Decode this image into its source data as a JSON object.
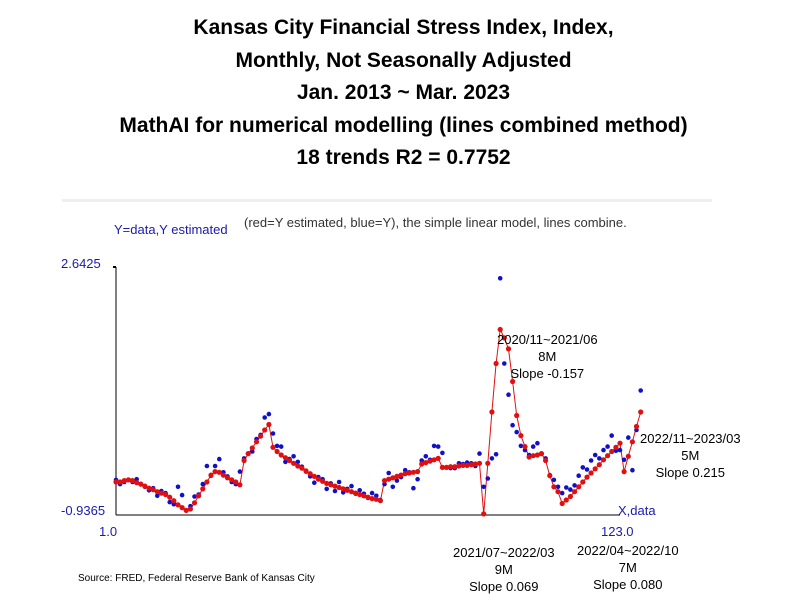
{
  "title_lines": [
    "Kansas City Financial Stress Index, Index,",
    "Monthly, Not Seasonally Adjusted",
    "Jan. 2013 ~ Mar. 2023",
    "MathAI for numerical modelling (lines combined method)",
    "18 trends    R2 = 0.7752"
  ],
  "axis_title_y": "Y=data,Y estimated",
  "axis_title_x": "X,data",
  "caption": "(red=Y estimated, blue=Y), the simple linear model, lines combine.",
  "source": "Source: FRED, Federal Reserve Bank of Kansas City",
  "annotations": [
    {
      "lines": [
        "2020/11~2021/06",
        "8M",
        "Slope -0.157"
      ]
    },
    {
      "lines": [
        "2022/11~2023/03",
        "5M",
        "Slope 0.215"
      ]
    },
    {
      "lines": [
        "2021/07~2022/03",
        "9M",
        "Slope 0.069"
      ]
    },
    {
      "lines": [
        "2022/04~2022/10",
        "7M",
        "Slope 0.080"
      ]
    }
  ],
  "colors": {
    "actual": "#1010c8",
    "estimated": "#e01010",
    "axis": "#000000",
    "labels": "#1a1ab0"
  },
  "chart_data": {
    "type": "line",
    "title": "Kansas City Financial Stress Index, Index, Monthly, Not Seasonally Adjusted",
    "xlabel": "X,data",
    "ylabel": "Y=data,Y estimated",
    "x_ticks": [
      "1.0",
      "123.0"
    ],
    "y_ticks": [
      "2.6425",
      "-0.9365"
    ],
    "xlim": [
      1,
      123
    ],
    "ylim": [
      -0.9365,
      2.6425
    ],
    "grid": false,
    "legend": "none",
    "series": [
      {
        "name": "Y",
        "values": [
          -0.43,
          -0.49,
          -0.46,
          -0.43,
          -0.46,
          -0.42,
          -0.49,
          -0.53,
          -0.58,
          -0.55,
          -0.66,
          -0.59,
          -0.62,
          -0.75,
          -0.78,
          -0.53,
          -0.65,
          -0.87,
          -0.81,
          -0.67,
          -0.64,
          -0.49,
          -0.23,
          -0.37,
          -0.23,
          -0.13,
          -0.32,
          -0.38,
          -0.46,
          -0.49,
          -0.31,
          -0.12,
          -0.05,
          -0.02,
          0.16,
          0.22,
          0.47,
          0.52,
          0.24,
          0.06,
          0.05,
          -0.17,
          -0.13,
          -0.09,
          -0.17,
          -0.24,
          -0.31,
          -0.38,
          -0.47,
          -0.39,
          -0.42,
          -0.56,
          -0.48,
          -0.59,
          -0.46,
          -0.61,
          -0.56,
          -0.52,
          -0.63,
          -0.58,
          -0.63,
          -0.69,
          -0.62,
          -0.66,
          -0.72,
          -0.49,
          -0.33,
          -0.53,
          -0.44,
          -0.39,
          -0.29,
          -0.32,
          -0.55,
          -0.42,
          -0.15,
          -0.09,
          -0.14,
          0.06,
          0.05,
          -0.04,
          -0.25,
          -0.26,
          -0.26,
          -0.19,
          -0.2,
          -0.18,
          -0.19,
          -0.23,
          -0.05,
          -0.53,
          -0.41,
          -0.12,
          -0.06,
          2.48,
          1.25,
          0.8,
          0.36,
          0.26,
          0.06,
          0.0,
          -0.07,
          0.05,
          0.1,
          -0.05,
          -0.12,
          -0.36,
          -0.43,
          -0.53,
          -0.62,
          -0.54,
          -0.57,
          -0.51,
          -0.37,
          -0.25,
          -0.28,
          -0.15,
          -0.07,
          -0.12,
          0.0,
          0.05,
          0.21,
          -0.01,
          0.0,
          -0.14,
          0.18,
          -0.29,
          0.29,
          0.86
        ]
      },
      {
        "name": "Y estimated",
        "values": [
          -0.46,
          -0.46,
          -0.44,
          -0.43,
          -0.44,
          -0.47,
          -0.49,
          -0.52,
          -0.55,
          -0.57,
          -0.6,
          -0.62,
          -0.64,
          -0.68,
          -0.73,
          -0.79,
          -0.83,
          -0.87,
          -0.85,
          -0.76,
          -0.66,
          -0.56,
          -0.46,
          -0.36,
          -0.31,
          -0.32,
          -0.36,
          -0.4,
          -0.43,
          -0.46,
          -0.5,
          -0.15,
          -0.05,
          0.03,
          0.12,
          0.2,
          0.29,
          0.37,
          0.04,
          -0.02,
          -0.07,
          -0.11,
          -0.15,
          -0.19,
          -0.23,
          -0.26,
          -0.3,
          -0.34,
          -0.38,
          -0.42,
          -0.45,
          -0.48,
          -0.5,
          -0.52,
          -0.54,
          -0.56,
          -0.58,
          -0.6,
          -0.62,
          -0.64,
          -0.66,
          -0.68,
          -0.7,
          -0.71,
          -0.73,
          -0.44,
          -0.42,
          -0.4,
          -0.38,
          -0.36,
          -0.34,
          -0.33,
          -0.32,
          -0.31,
          -0.2,
          -0.18,
          -0.16,
          -0.14,
          -0.12,
          -0.25,
          -0.25,
          -0.24,
          -0.24,
          -0.23,
          -0.22,
          -0.22,
          -0.21,
          -0.2,
          -0.19,
          -0.92,
          -0.19,
          0.55,
          1.25,
          1.74,
          1.62,
          1.46,
          0.99,
          0.5,
          0.21,
          0.05,
          -0.1,
          -0.08,
          -0.07,
          -0.05,
          -0.15,
          -0.37,
          -0.53,
          -0.6,
          -0.77,
          -0.72,
          -0.67,
          -0.6,
          -0.53,
          -0.46,
          -0.39,
          -0.33,
          -0.27,
          -0.21,
          -0.14,
          -0.08,
          -0.02,
          0.04,
          0.1,
          -0.31,
          -0.09,
          0.12,
          0.34,
          0.55
        ]
      }
    ]
  }
}
